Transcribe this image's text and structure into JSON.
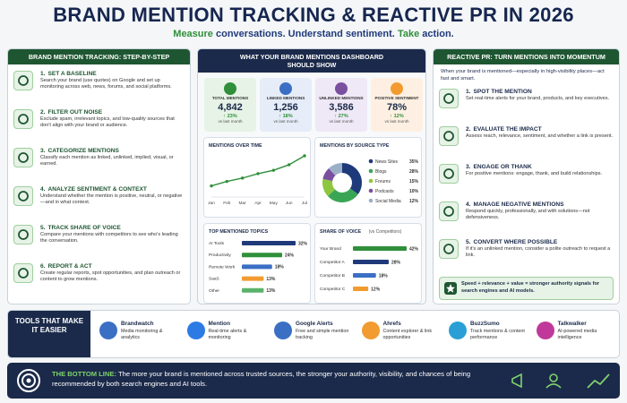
{
  "header": {
    "title": "BRAND MENTION TRACKING & REACTIVE PR IN 2026",
    "tagline": [
      "Measure",
      "conversations. Understand sentiment.",
      "Take",
      "action."
    ]
  },
  "left_panel": {
    "title": "BRAND MENTION TRACKING: STEP-BY-STEP",
    "steps": [
      {
        "number": "1.",
        "title": "SET A BASELINE",
        "text": "Search your brand (use quotes) on Google and set up monitoring across web, news, forums, and social platforms."
      },
      {
        "number": "2.",
        "title": "FILTER OUT NOISE",
        "text": "Exclude spam, irrelevant topics, and low-quality sources that don't align with your brand or audience."
      },
      {
        "number": "3.",
        "title": "CATEGORIZE MENTIONS",
        "text": "Classify each mention as linked, unlinked, implied, visual, or earned."
      },
      {
        "number": "4.",
        "title": "ANALYZE SENTIMENT & CONTEXT",
        "text": "Understand whether the mention is positive, neutral, or negative—and in what context."
      },
      {
        "number": "5.",
        "title": "TRACK SHARE OF VOICE",
        "text": "Compare your mentions with competitors to see who's leading the conversation."
      },
      {
        "number": "6.",
        "title": "REPORT & ACT",
        "text": "Create regular reports, spot opportunities, and plan outreach or content to grow mentions."
      }
    ]
  },
  "dashboard": {
    "title": "WHAT YOUR BRAND MENTIONS DASHBOARD SHOULD SHOW",
    "kpis": [
      {
        "label": "TOTAL MENTIONS",
        "value": "4,842",
        "change": "↑ 23%",
        "note": "vs last month"
      },
      {
        "label": "LINKED MENTIONS",
        "value": "1,256",
        "change": "↑ 18%",
        "note": "vs last month"
      },
      {
        "label": "UNLINKED MENTIONS",
        "value": "3,586",
        "change": "↑ 27%",
        "note": "vs last month"
      },
      {
        "label": "POSITIVE SENTIMENT",
        "value": "78%",
        "change": "↑ 12%",
        "note": "vs last month"
      }
    ]
  },
  "chart_data": [
    {
      "type": "line",
      "title": "MENTIONS OVER TIME",
      "categories": [
        "Jan",
        "Feb",
        "Mar",
        "Apr",
        "May",
        "Jun",
        "Jul"
      ],
      "values": [
        20,
        28,
        34,
        42,
        48,
        58,
        74
      ],
      "color": "#2f8f3a"
    },
    {
      "type": "pie",
      "title": "MENTIONS BY SOURCE TYPE",
      "categories": [
        "News Sites",
        "Blogs",
        "Forums",
        "Podcasts",
        "Social Media"
      ],
      "values": [
        35,
        28,
        15,
        10,
        12
      ],
      "value_labels": [
        "35%",
        "28%",
        "15%",
        "10%",
        "12%"
      ],
      "colors": [
        "#1f3a7a",
        "#3aa655",
        "#8dc63f",
        "#7b4fa0",
        "#9bb0c8"
      ]
    },
    {
      "type": "bar",
      "title": "TOP MENTIONED TOPICS",
      "categories": [
        "AI Tools",
        "Productivity",
        "Remote Work",
        "SaaS",
        "Other"
      ],
      "values": [
        32,
        24,
        18,
        13,
        13
      ],
      "value_labels": [
        "32%",
        "24%",
        "18%",
        "13%",
        "13%"
      ],
      "colors": [
        "#1f3a7a",
        "#2f8f3a",
        "#3b6fc4",
        "#f29b30",
        "#5bb36b"
      ]
    },
    {
      "type": "bar",
      "title": "SHARE OF VOICE",
      "subtitle": "(vs Competitors)",
      "categories": [
        "Your Brand",
        "Competitor A",
        "Competitor B",
        "Competitor C"
      ],
      "values": [
        42,
        28,
        18,
        12
      ],
      "value_labels": [
        "42%",
        "28%",
        "18%",
        "12%"
      ],
      "colors": [
        "#2f8f3a",
        "#1f3a7a",
        "#3b6fc4",
        "#f29b30"
      ]
    }
  ],
  "right_panel": {
    "title": "REACTIVE PR: TURN MENTIONS INTO MOMENTUM",
    "intro": "When your brand is mentioned—especially in high-visibility places—act fast and smart.",
    "steps": [
      {
        "number": "1.",
        "title": "SPOT THE MENTION",
        "text": "Set real-time alerts for your brand, products, and key executives."
      },
      {
        "number": "2.",
        "title": "EVALUATE THE IMPACT",
        "text": "Assess reach, relevance, sentiment, and whether a link is present."
      },
      {
        "number": "3.",
        "title": "ENGAGE OR THANK",
        "text": "For positive mentions: engage, thank, and build relationships."
      },
      {
        "number": "4.",
        "title": "MANAGE NEGATIVE MENTIONS",
        "text": "Respond quickly, professionally, and with solutions—not defensiveness."
      },
      {
        "number": "5.",
        "title": "CONVERT WHERE POSSIBLE",
        "text": "If it's an unlinked mention, consider a polite outreach to request a link."
      }
    ],
    "note": "Speed + relevance + value = stronger authority signals for search engines and AI models."
  },
  "tools": {
    "title": "TOOLS THAT MAKE IT EASIER",
    "items": [
      {
        "name": "Brandwatch",
        "text": "Media monitoring & analytics"
      },
      {
        "name": "Mention",
        "text": "Real-time alerts & monitoring"
      },
      {
        "name": "Google Alerts",
        "text": "Free and simple mention tracking"
      },
      {
        "name": "Ahrefs",
        "text": "Content explorer & link opportunities"
      },
      {
        "name": "BuzzSumo",
        "text": "Track mentions & content performance"
      },
      {
        "name": "Talkwalker",
        "text": "AI-powered media intelligence"
      }
    ]
  },
  "bottom_line": {
    "label": "THE BOTTOM LINE:",
    "text": "The more your brand is mentioned across trusted sources, the stronger your authority, visibility, and chances of being recommended by both search engines and AI tools."
  }
}
